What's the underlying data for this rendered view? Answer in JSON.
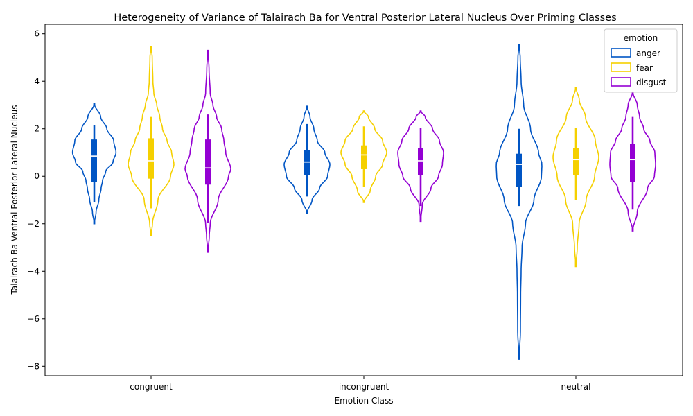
{
  "chart_data": {
    "type": "violin",
    "title": "Heterogeneity of Variance of Talairach Ba for Ventral Posterior Lateral Nucleus Over Priming Classes",
    "xlabel": "Emotion Class",
    "ylabel": "Talairach Ba Ventral Posterior Lateral Nucleus",
    "categories": [
      "congruent",
      "incongruent",
      "neutral"
    ],
    "ylim": [
      -8.4,
      6.4
    ],
    "yticks": [
      -8,
      -6,
      -4,
      -2,
      0,
      2,
      4,
      6
    ],
    "legend": {
      "title": "emotion",
      "position": "top-right"
    },
    "series": [
      {
        "name": "anger",
        "color": "#0055c4",
        "groups": [
          {
            "category": "congruent",
            "min": -1.1,
            "q1": -0.25,
            "median": 0.85,
            "q3": 1.55,
            "max": 2.15,
            "extent": [
              -2.0,
              3.05
            ],
            "profile": [
              [
                -2.0,
                0.0
              ],
              [
                -1.5,
                0.08
              ],
              [
                -1.0,
                0.2
              ],
              [
                -0.5,
                0.3
              ],
              [
                -0.2,
                0.36
              ],
              [
                0.2,
                0.5
              ],
              [
                0.6,
                0.82
              ],
              [
                1.0,
                0.95
              ],
              [
                1.5,
                0.85
              ],
              [
                2.0,
                0.55
              ],
              [
                2.5,
                0.28
              ],
              [
                3.05,
                0.0
              ]
            ]
          },
          {
            "category": "incongruent",
            "min": -0.85,
            "q1": 0.05,
            "median": 0.6,
            "q3": 1.1,
            "max": 2.2,
            "extent": [
              -1.55,
              2.95
            ],
            "profile": [
              [
                -1.55,
                0.0
              ],
              [
                -1.0,
                0.22
              ],
              [
                -0.5,
                0.55
              ],
              [
                0.0,
                0.9
              ],
              [
                0.5,
                1.0
              ],
              [
                1.0,
                0.78
              ],
              [
                1.5,
                0.45
              ],
              [
                2.0,
                0.3
              ],
              [
                2.5,
                0.13
              ],
              [
                2.95,
                0.0
              ]
            ]
          },
          {
            "category": "neutral",
            "min": -1.25,
            "q1": -0.45,
            "median": 0.5,
            "q3": 0.95,
            "max": 2.0,
            "extent": [
              -7.7,
              5.55
            ],
            "profile": [
              [
                -7.7,
                0.0
              ],
              [
                -6.5,
                0.06
              ],
              [
                -5.0,
                0.07
              ],
              [
                -4.0,
                0.09
              ],
              [
                -3.0,
                0.13
              ],
              [
                -2.0,
                0.28
              ],
              [
                -1.0,
                0.65
              ],
              [
                0.0,
                0.98
              ],
              [
                0.5,
                1.0
              ],
              [
                1.0,
                0.85
              ],
              [
                2.0,
                0.5
              ],
              [
                3.0,
                0.2
              ],
              [
                4.0,
                0.09
              ],
              [
                5.0,
                0.05
              ],
              [
                5.55,
                0.0
              ]
            ]
          }
        ]
      },
      {
        "name": "fear",
        "color": "#f5d000",
        "groups": [
          {
            "category": "congruent",
            "min": -1.35,
            "q1": -0.1,
            "median": 0.65,
            "q3": 1.6,
            "max": 2.5,
            "extent": [
              -2.5,
              5.45
            ],
            "profile": [
              [
                -2.5,
                0.0
              ],
              [
                -2.0,
                0.06
              ],
              [
                -1.0,
                0.3
              ],
              [
                0.0,
                0.85
              ],
              [
                0.5,
                1.0
              ],
              [
                1.0,
                0.9
              ],
              [
                1.5,
                0.7
              ],
              [
                2.0,
                0.5
              ],
              [
                2.5,
                0.38
              ],
              [
                3.0,
                0.25
              ],
              [
                3.5,
                0.12
              ],
              [
                4.0,
                0.08
              ],
              [
                5.0,
                0.05
              ],
              [
                5.45,
                0.0
              ]
            ]
          },
          {
            "category": "incongruent",
            "min": -0.45,
            "q1": 0.3,
            "median": 0.9,
            "q3": 1.3,
            "max": 2.1,
            "extent": [
              -1.1,
              2.75
            ],
            "profile": [
              [
                -1.1,
                0.0
              ],
              [
                -0.6,
                0.28
              ],
              [
                0.0,
                0.52
              ],
              [
                0.5,
                0.82
              ],
              [
                1.0,
                1.0
              ],
              [
                1.5,
                0.82
              ],
              [
                2.0,
                0.48
              ],
              [
                2.5,
                0.2
              ],
              [
                2.75,
                0.0
              ]
            ]
          },
          {
            "category": "neutral",
            "min": -1.0,
            "q1": 0.05,
            "median": 0.7,
            "q3": 1.2,
            "max": 2.05,
            "extent": [
              -3.8,
              3.75
            ],
            "profile": [
              [
                -3.8,
                0.0
              ],
              [
                -3.0,
                0.06
              ],
              [
                -2.0,
                0.14
              ],
              [
                -1.0,
                0.45
              ],
              [
                0.0,
                0.82
              ],
              [
                0.8,
                1.0
              ],
              [
                1.5,
                0.85
              ],
              [
                2.5,
                0.42
              ],
              [
                3.2,
                0.15
              ],
              [
                3.75,
                0.0
              ]
            ]
          }
        ]
      },
      {
        "name": "disgust",
        "color": "#9400d3",
        "groups": [
          {
            "category": "congruent",
            "min": -1.95,
            "q1": -0.35,
            "median": 0.35,
            "q3": 1.55,
            "max": 2.6,
            "extent": [
              -3.2,
              5.3
            ],
            "profile": [
              [
                -3.2,
                0.0
              ],
              [
                -2.5,
                0.06
              ],
              [
                -2.0,
                0.1
              ],
              [
                -1.0,
                0.45
              ],
              [
                0.0,
                0.9
              ],
              [
                0.3,
                1.0
              ],
              [
                1.0,
                0.78
              ],
              [
                1.5,
                0.7
              ],
              [
                2.0,
                0.6
              ],
              [
                2.5,
                0.38
              ],
              [
                3.0,
                0.22
              ],
              [
                3.5,
                0.1
              ],
              [
                4.5,
                0.05
              ],
              [
                5.3,
                0.0
              ]
            ]
          },
          {
            "category": "incongruent",
            "min": -1.25,
            "q1": 0.05,
            "median": 0.65,
            "q3": 1.2,
            "max": 2.05,
            "extent": [
              -1.9,
              2.75
            ],
            "profile": [
              [
                -1.9,
                0.0
              ],
              [
                -1.2,
                0.07
              ],
              [
                -0.5,
                0.45
              ],
              [
                0.0,
                0.78
              ],
              [
                0.5,
                0.95
              ],
              [
                1.0,
                1.0
              ],
              [
                1.5,
                0.82
              ],
              [
                2.0,
                0.52
              ],
              [
                2.5,
                0.2
              ],
              [
                2.75,
                0.0
              ]
            ]
          },
          {
            "category": "neutral",
            "min": -1.4,
            "q1": -0.25,
            "median": 0.7,
            "q3": 1.35,
            "max": 2.5,
            "extent": [
              -2.3,
              3.55
            ],
            "profile": [
              [
                -2.3,
                0.0
              ],
              [
                -1.5,
                0.2
              ],
              [
                -0.5,
                0.65
              ],
              [
                0.0,
                0.95
              ],
              [
                0.5,
                1.0
              ],
              [
                1.0,
                0.97
              ],
              [
                1.5,
                0.75
              ],
              [
                2.0,
                0.48
              ],
              [
                2.5,
                0.3
              ],
              [
                3.0,
                0.2
              ],
              [
                3.55,
                0.0
              ]
            ]
          }
        ]
      }
    ]
  }
}
